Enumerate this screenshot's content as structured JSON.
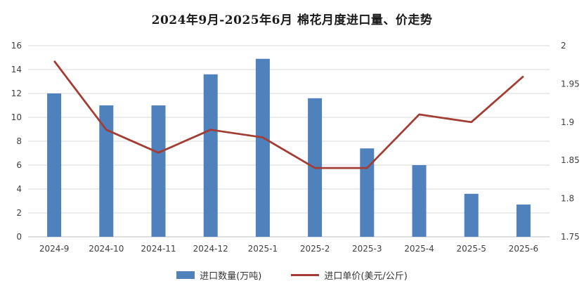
{
  "title": "2024年9月-2025年6月 棉花月度进口量、价走势",
  "colors": {
    "bar": "#4F81BD",
    "line": "#A33C33",
    "grid": "#D9D9D9",
    "axis": "#BFBFBF",
    "tick_text": "#404040",
    "title_text": "#1a1a1a"
  },
  "chart_data": {
    "type": "bar",
    "subtype": "combo-bar-line",
    "title": "2024年9月-2025年6月 棉花月度进口量、价走势",
    "categories": [
      "2024-9",
      "2024-10",
      "2024-11",
      "2024-12",
      "2025-1",
      "2025-2",
      "2025-3",
      "2025-4",
      "2025-5",
      "2025-6"
    ],
    "series": [
      {
        "name": "进口数量(万吨)",
        "type": "bar",
        "axis": "left",
        "values": [
          12,
          11,
          11,
          13.6,
          14.9,
          11.6,
          7.4,
          6,
          3.6,
          2.7
        ]
      },
      {
        "name": "进口单价(美元/公斤)",
        "type": "line",
        "axis": "right",
        "values": [
          1.98,
          1.89,
          1.86,
          1.89,
          1.88,
          1.84,
          1.84,
          1.91,
          1.9,
          1.96
        ]
      }
    ],
    "left_axis": {
      "min": 0,
      "max": 16,
      "step": 2,
      "ticks": [
        0,
        2,
        4,
        6,
        8,
        10,
        12,
        14,
        16
      ],
      "tick_labels": [
        "0",
        "2",
        "4",
        "6",
        "8",
        "10",
        "12",
        "14",
        "16"
      ]
    },
    "right_axis": {
      "min": 1.75,
      "max": 2,
      "step": 0.05,
      "ticks": [
        1.75,
        1.8,
        1.85,
        1.9,
        1.95,
        2
      ],
      "tick_labels": [
        "1.75",
        "1.8",
        "1.85",
        "1.9",
        "1.95",
        "2"
      ]
    },
    "grid": true,
    "legend_position": "bottom"
  }
}
